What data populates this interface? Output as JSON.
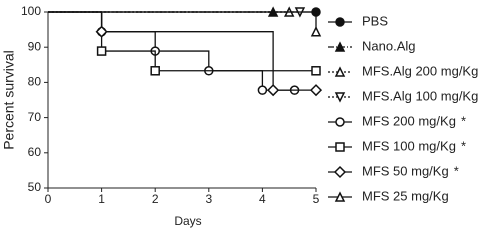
{
  "chart_data": {
    "type": "step",
    "xlabel": "Days",
    "ylabel": "Percent survival",
    "xlim": [
      0,
      5
    ],
    "xticks": [
      0,
      1,
      2,
      3,
      4,
      5
    ],
    "ylim": [
      50,
      100
    ],
    "yticks": [
      50,
      60,
      70,
      80,
      90,
      100
    ],
    "series": [
      {
        "name": "PBS",
        "color": "#111111",
        "marker": "circle-filled",
        "dash": "none",
        "x": [
          0,
          5
        ],
        "values": [
          100,
          100
        ]
      },
      {
        "name": "Nano.Alg",
        "color": "#111111",
        "marker": "triangle-filled",
        "dash": "6 2 1 2",
        "x": [
          0,
          4.2
        ],
        "values": [
          100,
          100
        ]
      },
      {
        "name": "MFS.Alg 200 mg/Kg",
        "color": "#111111",
        "marker": "triangle-open",
        "dash": "2 2",
        "x": [
          0,
          4.5
        ],
        "values": [
          100,
          100
        ]
      },
      {
        "name": "MFS.Alg 100 mg/Kg",
        "color": "#111111",
        "marker": "triangle-down-open",
        "dash": "2 2",
        "x": [
          0,
          4.7
        ],
        "values": [
          100,
          100
        ]
      },
      {
        "name": "MFS 200 mg/Kg",
        "significance": "*",
        "color": "#111111",
        "marker": "circle-open",
        "dash": "none",
        "x": [
          0,
          1,
          2,
          3,
          4,
          4.6
        ],
        "values": [
          100,
          94.4,
          88.9,
          83.3,
          77.8,
          77.8
        ]
      },
      {
        "name": "MFS 100 mg/Kg",
        "significance": "*",
        "color": "#111111",
        "marker": "square-open",
        "dash": "none",
        "x": [
          0,
          1,
          2,
          5
        ],
        "values": [
          100,
          88.9,
          83.3,
          83.3
        ]
      },
      {
        "name": "MFS 50 mg/Kg",
        "significance": "*",
        "color": "#111111",
        "marker": "diamond-open",
        "dash": "none",
        "x": [
          0,
          1,
          4.2,
          5
        ],
        "values": [
          100,
          94.4,
          77.8,
          77.8
        ]
      },
      {
        "name": "MFS 25 mg/Kg",
        "color": "#111111",
        "marker": "triangle-open",
        "dash": "none",
        "x": [
          0,
          5
        ],
        "values": [
          100,
          94.4
        ]
      }
    ]
  }
}
